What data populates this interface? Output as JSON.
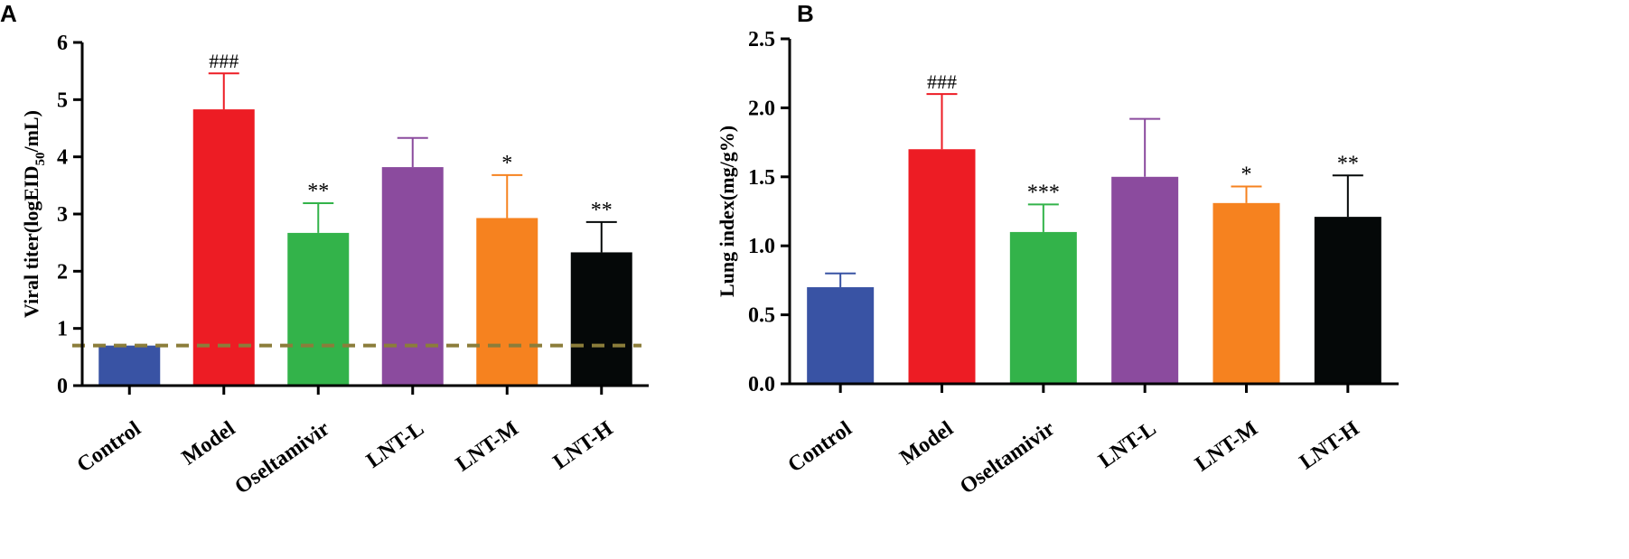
{
  "chart_data": [
    {
      "panel": "A",
      "type": "bar",
      "categories": [
        "Control",
        "Model",
        "Oseltamivir",
        "LNT-L",
        "LNT-M",
        "LNT-H"
      ],
      "values": [
        0.7,
        4.83,
        2.67,
        3.82,
        2.93,
        2.33
      ],
      "errors": [
        0,
        0.63,
        0.52,
        0.51,
        0.75,
        0.53
      ],
      "colors": [
        "#3953a4",
        "#ed1c24",
        "#33b34a",
        "#8b4b9e",
        "#f6821f",
        "#050808"
      ],
      "annotations": [
        "",
        "###",
        "**",
        "",
        "*",
        "**"
      ],
      "ylabel": "Viral titer(logEID",
      "ylabel_sub": "50",
      "ylabel_end": "/mL)",
      "ylim": [
        0,
        6
      ],
      "yticks": [
        0,
        1,
        2,
        3,
        4,
        5,
        6
      ],
      "ytick_labels": [
        "0",
        "1",
        "2",
        "3",
        "4",
        "5",
        "6"
      ],
      "reference_line": 0.7,
      "reference_color": "#8b7d3a"
    },
    {
      "panel": "B",
      "type": "bar",
      "categories": [
        "Control",
        "Model",
        "Oseltamivir",
        "LNT-L",
        "LNT-M",
        "LNT-H"
      ],
      "values": [
        0.7,
        1.7,
        1.1,
        1.5,
        1.31,
        1.21
      ],
      "errors": [
        0.1,
        0.4,
        0.2,
        0.42,
        0.12,
        0.3
      ],
      "colors": [
        "#3953a4",
        "#ed1c24",
        "#33b34a",
        "#8b4b9e",
        "#f6821f",
        "#050808"
      ],
      "annotations": [
        "",
        "###",
        "***",
        "",
        "*",
        "**"
      ],
      "ylabel": "Lung index(mg/g%)",
      "ylim": [
        0,
        2.5
      ],
      "yticks": [
        0,
        0.5,
        1.0,
        1.5,
        2.0,
        2.5
      ],
      "ytick_labels": [
        "0.0",
        "0.5",
        "1.0",
        "1.5",
        "2.0",
        "2.5"
      ]
    }
  ]
}
